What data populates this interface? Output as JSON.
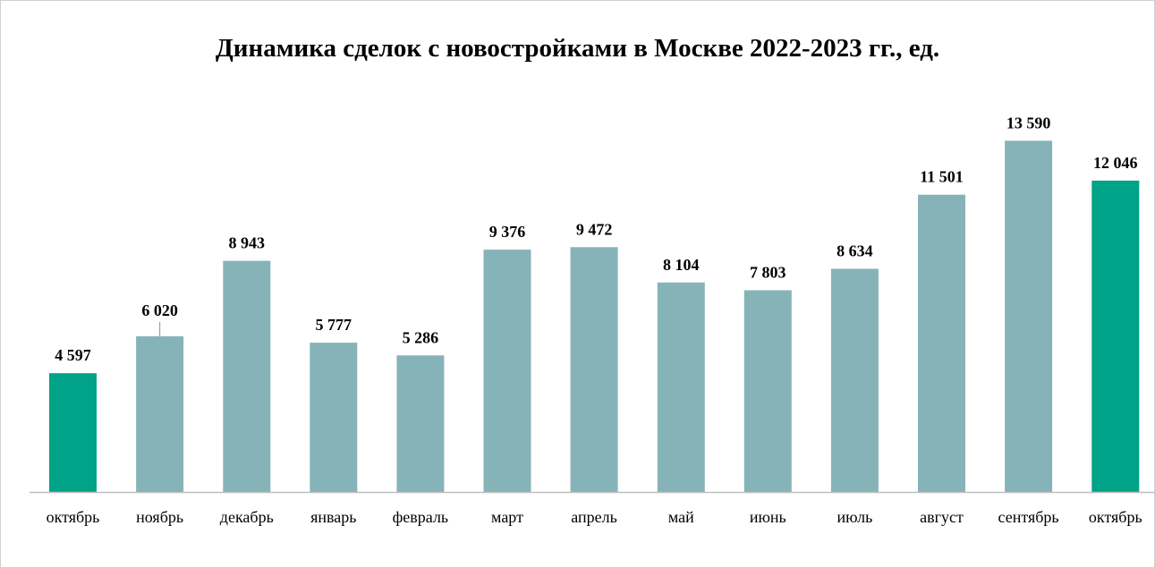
{
  "chart_data": {
    "type": "bar",
    "title": "Динамика сделок с новостройками в Москве 2022-2023 гг., ед.",
    "xlabel": "",
    "ylabel": "",
    "categories": [
      "октябрь",
      "ноябрь",
      "декабрь",
      "январь",
      "февраль",
      "март",
      "апрель",
      "май",
      "июнь",
      "июль",
      "август",
      "сентябрь",
      "октябрь"
    ],
    "values": [
      4597,
      6020,
      8943,
      5777,
      5286,
      9376,
      9472,
      8104,
      7803,
      8634,
      11501,
      13590,
      12046
    ],
    "value_labels": [
      "4 597",
      "6 020",
      "8 943",
      "5 777",
      "5 286",
      "9 376",
      "9 472",
      "8 104",
      "7 803",
      "8 634",
      "11 501",
      "13 590",
      "12 046"
    ],
    "highlighted": [
      0,
      12
    ],
    "ylim": [
      0,
      13600
    ],
    "grid": false,
    "legend": "none",
    "colors": {
      "bar": "#86b3b8",
      "highlight": "#00a387",
      "axis": "#bfbfbf"
    }
  }
}
